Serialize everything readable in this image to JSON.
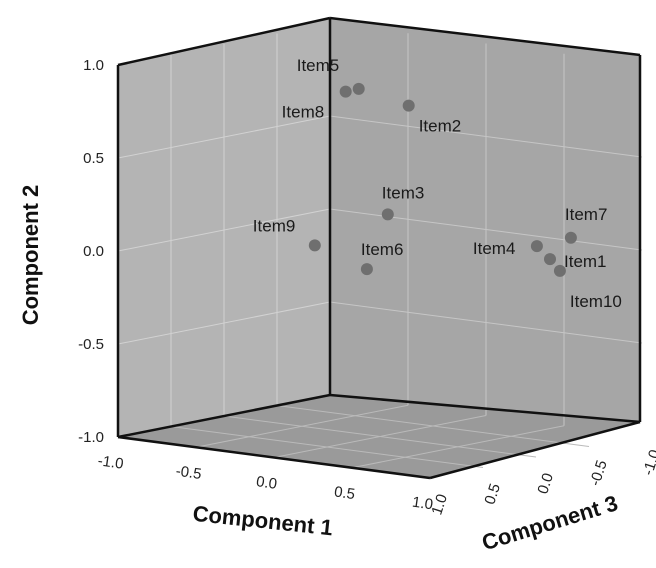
{
  "chart_data": {
    "type": "scatter3d",
    "axes": {
      "x": {
        "label": "Component 1",
        "ticks": [
          "-1.0",
          "-0.5",
          "0.0",
          "0.5",
          "1.0"
        ],
        "range": [
          -1.0,
          1.0
        ]
      },
      "y": {
        "label": "Component 2",
        "ticks": [
          "-1.0",
          "-0.5",
          "0.0",
          "0.5",
          "1.0"
        ],
        "range": [
          -1.0,
          1.0
        ]
      },
      "z": {
        "label": "Component 3",
        "ticks": [
          "1.0",
          "0.5",
          "0.0",
          "-0.5",
          "-1.0"
        ],
        "range": [
          -1.0,
          1.0
        ]
      }
    },
    "grid": true,
    "colors": {
      "point": "#6f6f6f",
      "back_wall": "#b4b4b4",
      "side_wall": "#a6a6a6",
      "floor": "#9a9a9a",
      "frame": "#111111"
    },
    "points": [
      {
        "label": "Item5",
        "x": -0.15,
        "y": 0.85,
        "z": -0.02
      },
      {
        "label": "Item8",
        "x": -0.22,
        "y": 0.83,
        "z": 0.0
      },
      {
        "label": "Item2",
        "x": 0.15,
        "y": 0.79,
        "z": -0.05
      },
      {
        "label": "Item7",
        "x": 0.85,
        "y": 0.1,
        "z": -0.55
      },
      {
        "label": "Item4",
        "x": 0.7,
        "y": 0.05,
        "z": -0.45
      },
      {
        "label": "Item1",
        "x": 0.75,
        "y": -0.02,
        "z": -0.5
      },
      {
        "label": "Item10",
        "x": 0.8,
        "y": -0.08,
        "z": -0.52
      },
      {
        "label": "Item3",
        "x": 0.05,
        "y": 0.2,
        "z": 0.0
      },
      {
        "label": "Item9",
        "x": -0.35,
        "y": 0.0,
        "z": 0.1
      },
      {
        "label": "Item6",
        "x": -0.05,
        "y": -0.1,
        "z": 0.05
      }
    ]
  }
}
